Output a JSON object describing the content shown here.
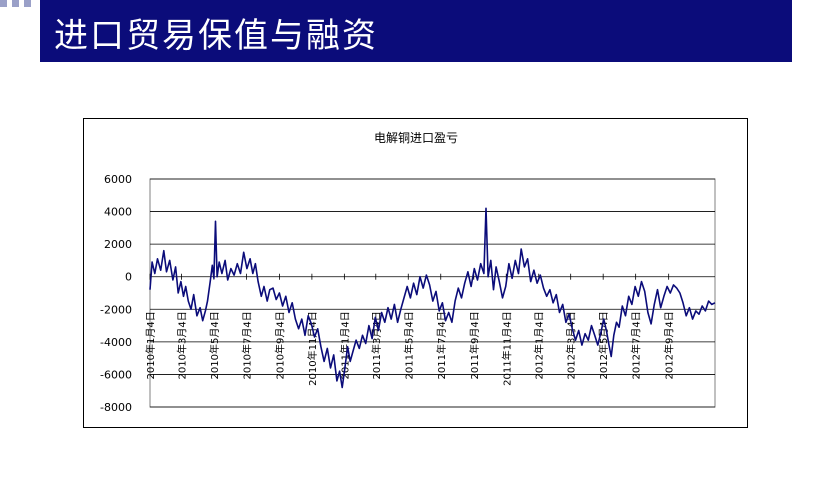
{
  "slide": {
    "title": "进口贸易保值与融资",
    "accent_color": "#0b0c7a"
  },
  "chart_data": {
    "type": "line",
    "title": "电解铜进口盈亏",
    "xlabel": "",
    "ylabel": "",
    "ylim": [
      -8000,
      6000
    ],
    "yticks": [
      6000,
      4000,
      2000,
      0,
      -2000,
      -4000,
      -6000,
      -8000
    ],
    "xlim": [
      "2010-01-04",
      "2012-11-30"
    ],
    "xtick_labels": [
      {
        "date": "2010-01-04",
        "label": "2010年1月4日"
      },
      {
        "date": "2010-03-04",
        "label": "2010年3月4日"
      },
      {
        "date": "2010-05-04",
        "label": "2010年5月4日"
      },
      {
        "date": "2010-07-04",
        "label": "2010年7月4日"
      },
      {
        "date": "2010-09-04",
        "label": "2010年9月4日"
      },
      {
        "date": "2010-11-04",
        "label": "2010年11月4日"
      },
      {
        "date": "2011-01-04",
        "label": "2011年1月4日"
      },
      {
        "date": "2011-03-04",
        "label": "2011年3月4日"
      },
      {
        "date": "2011-05-04",
        "label": "2011年5月4日"
      },
      {
        "date": "2011-07-04",
        "label": "2011年7月4日"
      },
      {
        "date": "2011-09-04",
        "label": "2011年9月4日"
      },
      {
        "date": "2011-11-04",
        "label": "2011年11月4日"
      },
      {
        "date": "2012-01-04",
        "label": "2012年1月4日"
      },
      {
        "date": "2012-03-04",
        "label": "2012年3月4日"
      },
      {
        "date": "2012-05-04",
        "label": "2012年5月4日"
      },
      {
        "date": "2012-07-04",
        "label": "2012年7月4日"
      },
      {
        "date": "2012-09-04",
        "label": "2012年9月4日"
      }
    ],
    "grid": "horizontal",
    "legend": "none",
    "series": [
      {
        "color": "#0b0c7a",
        "points": [
          [
            "2010-01-04",
            -800
          ],
          [
            "2010-01-08",
            900
          ],
          [
            "2010-01-13",
            200
          ],
          [
            "2010-01-18",
            1100
          ],
          [
            "2010-01-24",
            400
          ],
          [
            "2010-01-30",
            1600
          ],
          [
            "2010-02-04",
            300
          ],
          [
            "2010-02-10",
            1000
          ],
          [
            "2010-02-16",
            -200
          ],
          [
            "2010-02-21",
            600
          ],
          [
            "2010-02-26",
            -1000
          ],
          [
            "2010-03-03",
            -300
          ],
          [
            "2010-03-08",
            -1200
          ],
          [
            "2010-03-12",
            -600
          ],
          [
            "2010-03-17",
            -1500
          ],
          [
            "2010-03-22",
            -2000
          ],
          [
            "2010-03-27",
            -1100
          ],
          [
            "2010-04-02",
            -2400
          ],
          [
            "2010-04-08",
            -1900
          ],
          [
            "2010-04-13",
            -2700
          ],
          [
            "2010-04-18",
            -2100
          ],
          [
            "2010-04-22",
            -1500
          ],
          [
            "2010-04-27",
            -300
          ],
          [
            "2010-05-01",
            700
          ],
          [
            "2010-05-04",
            -100
          ],
          [
            "2010-05-07",
            3400
          ],
          [
            "2010-05-10",
            0
          ],
          [
            "2010-05-14",
            900
          ],
          [
            "2010-05-19",
            200
          ],
          [
            "2010-05-25",
            1000
          ],
          [
            "2010-05-30",
            -200
          ],
          [
            "2010-06-05",
            500
          ],
          [
            "2010-06-11",
            100
          ],
          [
            "2010-06-17",
            800
          ],
          [
            "2010-06-23",
            200
          ],
          [
            "2010-06-29",
            1500
          ],
          [
            "2010-07-05",
            500
          ],
          [
            "2010-07-11",
            1100
          ],
          [
            "2010-07-16",
            200
          ],
          [
            "2010-07-21",
            800
          ],
          [
            "2010-07-26",
            -300
          ],
          [
            "2010-08-01",
            -1200
          ],
          [
            "2010-08-06",
            -600
          ],
          [
            "2010-08-12",
            -1500
          ],
          [
            "2010-08-17",
            -800
          ],
          [
            "2010-08-23",
            -700
          ],
          [
            "2010-08-29",
            -1400
          ],
          [
            "2010-09-04",
            -1000
          ],
          [
            "2010-09-10",
            -1800
          ],
          [
            "2010-09-16",
            -1200
          ],
          [
            "2010-09-22",
            -2200
          ],
          [
            "2010-09-28",
            -1600
          ],
          [
            "2010-10-04",
            -2600
          ],
          [
            "2010-10-10",
            -3200
          ],
          [
            "2010-10-16",
            -2600
          ],
          [
            "2010-10-22",
            -3600
          ],
          [
            "2010-10-28",
            -2400
          ],
          [
            "2010-11-03",
            -2900
          ],
          [
            "2010-11-09",
            -3700
          ],
          [
            "2010-11-15",
            -3200
          ],
          [
            "2010-11-21",
            -4300
          ],
          [
            "2010-11-27",
            -5200
          ],
          [
            "2010-12-03",
            -4400
          ],
          [
            "2010-12-09",
            -5600
          ],
          [
            "2010-12-15",
            -4800
          ],
          [
            "2010-12-21",
            -6400
          ],
          [
            "2010-12-26",
            -5800
          ],
          [
            "2010-12-31",
            -6800
          ],
          [
            "2011-01-05",
            -5600
          ],
          [
            "2011-01-10",
            -4300
          ],
          [
            "2011-01-15",
            -5200
          ],
          [
            "2011-01-20",
            -4600
          ],
          [
            "2011-01-26",
            -3900
          ],
          [
            "2011-02-01",
            -4400
          ],
          [
            "2011-02-07",
            -3600
          ],
          [
            "2011-02-13",
            -4100
          ],
          [
            "2011-02-19",
            -3000
          ],
          [
            "2011-02-25",
            -3800
          ],
          [
            "2011-03-03",
            -2500
          ],
          [
            "2011-03-09",
            -3300
          ],
          [
            "2011-03-15",
            -2200
          ],
          [
            "2011-03-21",
            -2800
          ],
          [
            "2011-03-27",
            -1900
          ],
          [
            "2011-04-02",
            -2600
          ],
          [
            "2011-04-08",
            -1700
          ],
          [
            "2011-04-14",
            -2800
          ],
          [
            "2011-04-20",
            -2000
          ],
          [
            "2011-04-26",
            -1300
          ],
          [
            "2011-05-02",
            -600
          ],
          [
            "2011-05-08",
            -1300
          ],
          [
            "2011-05-14",
            -400
          ],
          [
            "2011-05-20",
            -1100
          ],
          [
            "2011-05-26",
            0
          ],
          [
            "2011-06-01",
            -700
          ],
          [
            "2011-06-07",
            100
          ],
          [
            "2011-06-13",
            -500
          ],
          [
            "2011-06-19",
            -1500
          ],
          [
            "2011-06-25",
            -900
          ],
          [
            "2011-07-01",
            -2100
          ],
          [
            "2011-07-07",
            -1600
          ],
          [
            "2011-07-13",
            -2700
          ],
          [
            "2011-07-19",
            -2200
          ],
          [
            "2011-07-25",
            -2800
          ],
          [
            "2011-07-31",
            -1500
          ],
          [
            "2011-08-06",
            -700
          ],
          [
            "2011-08-12",
            -1300
          ],
          [
            "2011-08-18",
            -400
          ],
          [
            "2011-08-24",
            300
          ],
          [
            "2011-08-30",
            -600
          ],
          [
            "2011-09-05",
            500
          ],
          [
            "2011-09-11",
            -200
          ],
          [
            "2011-09-17",
            800
          ],
          [
            "2011-09-23",
            200
          ],
          [
            "2011-09-27",
            4200
          ],
          [
            "2011-10-01",
            0
          ],
          [
            "2011-10-06",
            1000
          ],
          [
            "2011-10-11",
            -800
          ],
          [
            "2011-10-16",
            600
          ],
          [
            "2011-10-22",
            -300
          ],
          [
            "2011-10-28",
            -1300
          ],
          [
            "2011-11-03",
            -600
          ],
          [
            "2011-11-09",
            800
          ],
          [
            "2011-11-15",
            -100
          ],
          [
            "2011-11-21",
            1000
          ],
          [
            "2011-11-27",
            200
          ],
          [
            "2011-12-02",
            1700
          ],
          [
            "2011-12-08",
            600
          ],
          [
            "2011-12-14",
            1100
          ],
          [
            "2011-12-20",
            -300
          ],
          [
            "2011-12-26",
            400
          ],
          [
            "2012-01-01",
            -400
          ],
          [
            "2012-01-07",
            100
          ],
          [
            "2012-01-13",
            -700
          ],
          [
            "2012-01-19",
            -1200
          ],
          [
            "2012-01-25",
            -800
          ],
          [
            "2012-01-31",
            -1600
          ],
          [
            "2012-02-06",
            -1100
          ],
          [
            "2012-02-12",
            -2200
          ],
          [
            "2012-02-18",
            -1700
          ],
          [
            "2012-02-24",
            -2800
          ],
          [
            "2012-03-01",
            -2300
          ],
          [
            "2012-03-07",
            -3200
          ],
          [
            "2012-03-13",
            -3900
          ],
          [
            "2012-03-19",
            -3300
          ],
          [
            "2012-03-25",
            -4200
          ],
          [
            "2012-03-31",
            -3500
          ],
          [
            "2012-04-06",
            -3900
          ],
          [
            "2012-04-12",
            -3000
          ],
          [
            "2012-04-18",
            -3600
          ],
          [
            "2012-04-24",
            -4200
          ],
          [
            "2012-04-30",
            -3400
          ],
          [
            "2012-05-05",
            -2600
          ],
          [
            "2012-05-10",
            -3300
          ],
          [
            "2012-05-15",
            -4200
          ],
          [
            "2012-05-19",
            -4900
          ],
          [
            "2012-05-24",
            -3600
          ],
          [
            "2012-05-29",
            -2800
          ],
          [
            "2012-06-03",
            -3100
          ],
          [
            "2012-06-09",
            -1800
          ],
          [
            "2012-06-15",
            -2400
          ],
          [
            "2012-06-21",
            -1200
          ],
          [
            "2012-06-27",
            -1700
          ],
          [
            "2012-07-03",
            -600
          ],
          [
            "2012-07-09",
            -1200
          ],
          [
            "2012-07-15",
            -300
          ],
          [
            "2012-07-21",
            -900
          ],
          [
            "2012-07-27",
            -2200
          ],
          [
            "2012-08-02",
            -2900
          ],
          [
            "2012-08-08",
            -1700
          ],
          [
            "2012-08-14",
            -800
          ],
          [
            "2012-08-20",
            -1900
          ],
          [
            "2012-08-26",
            -1200
          ],
          [
            "2012-09-01",
            -600
          ],
          [
            "2012-09-07",
            -1000
          ],
          [
            "2012-09-13",
            -500
          ],
          [
            "2012-09-19",
            -700
          ],
          [
            "2012-09-25",
            -1000
          ],
          [
            "2012-10-01",
            -1600
          ],
          [
            "2012-10-07",
            -2400
          ],
          [
            "2012-10-13",
            -1900
          ],
          [
            "2012-10-19",
            -2600
          ],
          [
            "2012-10-25",
            -2100
          ],
          [
            "2012-10-31",
            -2300
          ],
          [
            "2012-11-06",
            -1800
          ],
          [
            "2012-11-12",
            -2100
          ],
          [
            "2012-11-18",
            -1500
          ],
          [
            "2012-11-24",
            -1700
          ],
          [
            "2012-11-30",
            -1600
          ]
        ]
      }
    ]
  }
}
